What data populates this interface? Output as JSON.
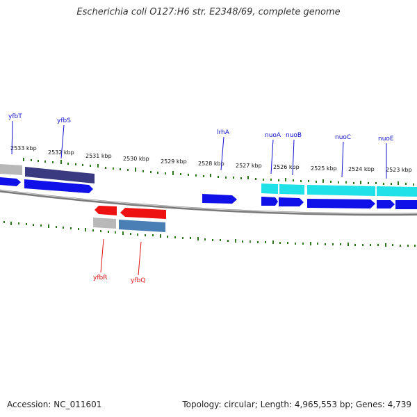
{
  "title": "Escherichia coli O127:H6 str. E2348/69, complete genome",
  "footer": {
    "accession": "Accession: NC_011601",
    "topology": "Topology: circular; Length: 4,965,553 bp; Genes: 4,739"
  },
  "kbp_ticks": [
    "2533 kbp",
    "2532 kbp",
    "2531 kbp",
    "2530 kbp",
    "2529 kbp",
    "2528 kbp",
    "2527 kbp",
    "2526 kbp",
    "2525 kbp",
    "2524 kbp",
    "2523 kbp"
  ],
  "gene_labels": {
    "forward": [
      "yfbT",
      "yfbS",
      "lrhA",
      "nuoA",
      "nuoB",
      "nuoC",
      "nuoE"
    ],
    "reverse": [
      "yfbR",
      "yfbQ"
    ]
  },
  "colors": {
    "forward_label": "#1010cc",
    "reverse_label": "#dd1111",
    "cds_forward": "#1010e8",
    "cds_reverse": "#ee1111",
    "gene_navy": "#3a3a80",
    "gene_cyan": "#20e0e8",
    "gene_steel": "#4a7fb5",
    "gene_gray": "#b8b8b8",
    "tick_green": "#2a7a1a",
    "backbone": "#888888"
  }
}
